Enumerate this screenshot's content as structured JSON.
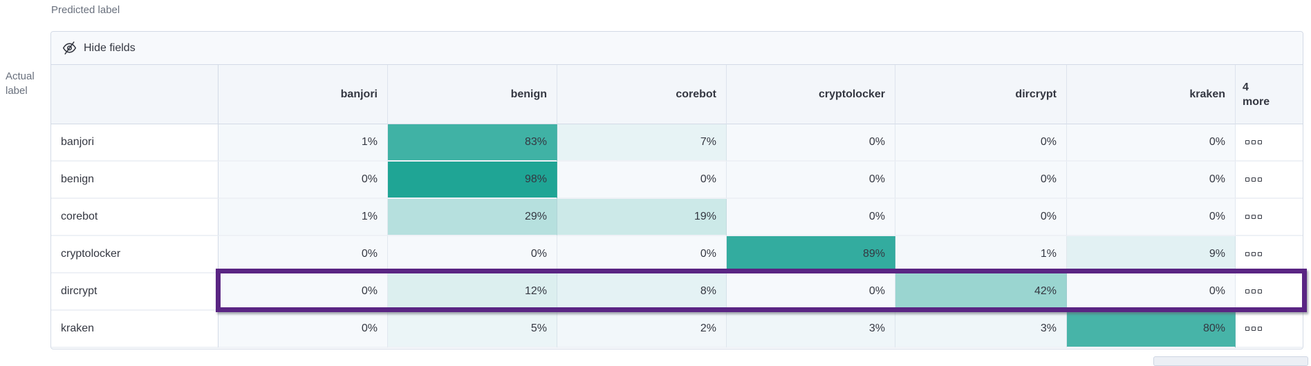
{
  "page": {
    "predicted_axis_label": "Predicted label",
    "actual_axis_label": "Actual label"
  },
  "toolbar": {
    "hide_fields_label": "Hide fields",
    "hide_fields_icon": "eye-closed-icon"
  },
  "table": {
    "more_column_label": "4 more",
    "row_actions_icon": "boxes-horizontal-icon"
  },
  "chart_data": {
    "type": "heatmap",
    "subtype": "confusion-matrix",
    "x_axis_title": "Predicted label",
    "y_axis_title": "Actual label",
    "columns": [
      "banjori",
      "benign",
      "corebot",
      "cryptolocker",
      "dircrypt",
      "kraken"
    ],
    "rows": [
      "banjori",
      "benign",
      "corebot",
      "cryptolocker",
      "dircrypt",
      "kraken"
    ],
    "values_percent": [
      [
        1,
        83,
        7,
        0,
        0,
        0
      ],
      [
        0,
        98,
        0,
        0,
        0,
        0
      ],
      [
        1,
        29,
        19,
        0,
        0,
        0
      ],
      [
        0,
        0,
        0,
        89,
        1,
        9
      ],
      [
        0,
        12,
        8,
        0,
        42,
        0
      ],
      [
        0,
        5,
        2,
        3,
        3,
        80
      ]
    ],
    "value_suffix": "%",
    "highlighted_row": "dircrypt",
    "colors": {
      "cell_scale_low": "#F6F9FC",
      "cell_scale_high": "#1BA393",
      "highlight_border": "#5A2583",
      "header_background": "#F3F6FA",
      "border": "#D3DAE6"
    }
  }
}
